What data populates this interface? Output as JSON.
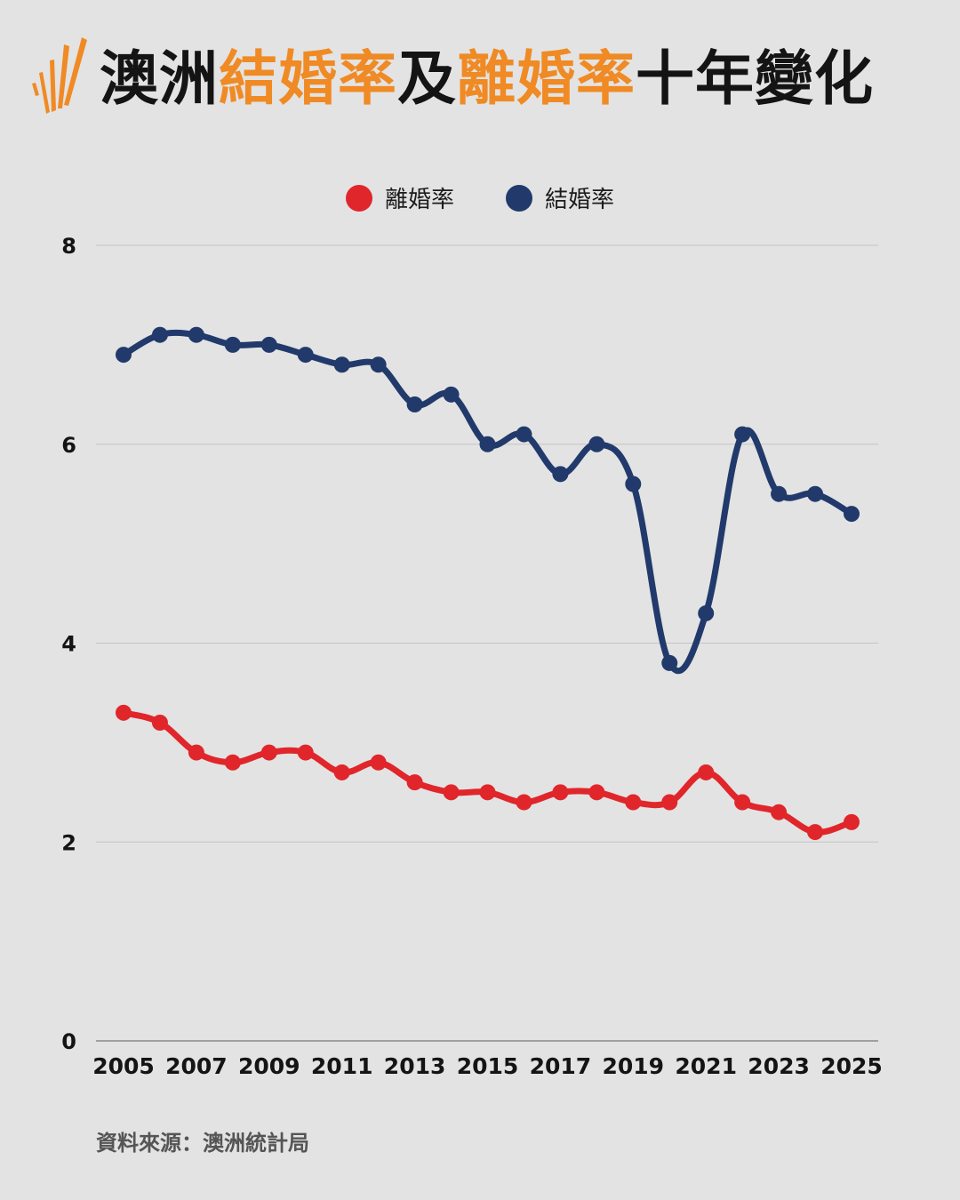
{
  "header": {
    "title_parts": [
      {
        "text": "澳洲",
        "color": "#141414"
      },
      {
        "text": "結婚率",
        "color": "#f08a24"
      },
      {
        "text": "及",
        "color": "#141414"
      },
      {
        "text": "離婚率",
        "color": "#f08a24"
      },
      {
        "text": "十年變化",
        "color": "#141414"
      }
    ],
    "logo_icon": "sbs-sunburst-icon",
    "logo_color": "#f08a24"
  },
  "chart_data": {
    "type": "line",
    "x": [
      2005,
      2006,
      2007,
      2008,
      2009,
      2010,
      2011,
      2012,
      2013,
      2014,
      2015,
      2016,
      2017,
      2018,
      2019,
      2020,
      2021,
      2022,
      2023,
      2024,
      2025
    ],
    "x_tick_labels": [
      "2005",
      "2007",
      "2009",
      "2011",
      "2013",
      "2015",
      "2017",
      "2019",
      "2021",
      "2023",
      "2025"
    ],
    "y_tick_labels": [
      "0",
      "2",
      "4",
      "6",
      "8"
    ],
    "ylim": [
      0,
      8
    ],
    "grid": true,
    "legend_position": "top-center",
    "series": [
      {
        "name": "離婚率",
        "color": "#e0262b",
        "values": [
          3.3,
          3.2,
          2.9,
          2.8,
          2.9,
          2.9,
          2.7,
          2.8,
          2.6,
          2.5,
          2.5,
          2.4,
          2.5,
          2.5,
          2.4,
          2.4,
          2.7,
          2.4,
          2.3,
          2.1,
          2.2
        ]
      },
      {
        "name": "結婚率",
        "color": "#213a6b",
        "values": [
          6.9,
          7.1,
          7.1,
          7.0,
          7.0,
          6.9,
          6.8,
          6.8,
          6.4,
          6.5,
          6.0,
          6.1,
          5.7,
          6.0,
          5.6,
          3.8,
          4.3,
          6.1,
          5.5,
          5.5,
          5.3
        ]
      }
    ]
  },
  "footer": {
    "source": "資料來源：澳洲統計局"
  }
}
